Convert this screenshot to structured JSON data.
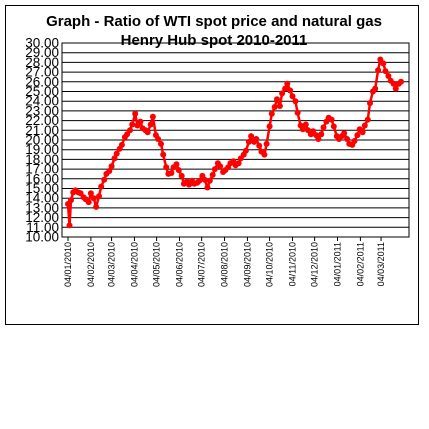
{
  "chart_data": {
    "type": "line",
    "title": "Graph - Ratio of WTI spot price and natural gas Henry Hub spot 2010-2011",
    "xlabel": "",
    "ylabel": "",
    "ylim": [
      10,
      30
    ],
    "yticks": [
      "10.00",
      "11.00",
      "12.00",
      "13.00",
      "14.00",
      "15.00",
      "16.00",
      "17.00",
      "18.00",
      "19.00",
      "20.00",
      "21.00",
      "22.00",
      "23.00",
      "24.00",
      "25.00",
      "26.00",
      "27.00",
      "28.00",
      "29.00",
      "30.00"
    ],
    "xlim": [
      "2010-01-04",
      "2011-03-31"
    ],
    "xticks": [
      {
        "date": "2010-01-04",
        "label": "04/01/2010"
      },
      {
        "date": "2010-02-04",
        "label": "04/02/2010"
      },
      {
        "date": "2010-03-04",
        "label": "04/03/2010"
      },
      {
        "date": "2010-04-04",
        "label": "04/04/2010"
      },
      {
        "date": "2010-05-04",
        "label": "04/05/2010"
      },
      {
        "date": "2010-06-04",
        "label": "04/06/2010"
      },
      {
        "date": "2010-07-04",
        "label": "04/07/2010"
      },
      {
        "date": "2010-08-04",
        "label": "04/08/2010"
      },
      {
        "date": "2010-09-04",
        "label": "04/09/2010"
      },
      {
        "date": "2010-10-04",
        "label": "04/10/2010"
      },
      {
        "date": "2010-11-04",
        "label": "04/11/2010"
      },
      {
        "date": "2010-12-04",
        "label": "04/12/2010"
      },
      {
        "date": "2011-01-04",
        "label": "04/01/2011"
      },
      {
        "date": "2011-02-04",
        "label": "04/02/2011"
      },
      {
        "date": "2011-03-04",
        "label": "04/03/2011"
      }
    ],
    "grid": "horizontal",
    "series": [
      {
        "color": "#ff0000",
        "points": [
          [
            "2010-01-04",
            13.4
          ],
          [
            "2010-01-06",
            11.2
          ],
          [
            "2010-01-08",
            13.8
          ],
          [
            "2010-01-11",
            14.6
          ],
          [
            "2010-01-14",
            14.8
          ],
          [
            "2010-01-18",
            14.6
          ],
          [
            "2010-01-21",
            14.5
          ],
          [
            "2010-01-25",
            14.1
          ],
          [
            "2010-01-28",
            13.9
          ],
          [
            "2010-02-01",
            13.6
          ],
          [
            "2010-02-04",
            14.5
          ],
          [
            "2010-02-08",
            14.0
          ],
          [
            "2010-02-11",
            13.1
          ],
          [
            "2010-02-15",
            14.2
          ],
          [
            "2010-02-18",
            15.2
          ],
          [
            "2010-02-22",
            15.9
          ],
          [
            "2010-02-25",
            16.5
          ],
          [
            "2010-03-01",
            16.8
          ],
          [
            "2010-03-04",
            17.3
          ],
          [
            "2010-03-08",
            18.1
          ],
          [
            "2010-03-11",
            18.6
          ],
          [
            "2010-03-15",
            19.1
          ],
          [
            "2010-03-18",
            19.5
          ],
          [
            "2010-03-22",
            20.3
          ],
          [
            "2010-03-25",
            20.6
          ],
          [
            "2010-03-29",
            21.0
          ],
          [
            "2010-04-01",
            21.6
          ],
          [
            "2010-04-05",
            22.7
          ],
          [
            "2010-04-08",
            21.5
          ],
          [
            "2010-04-12",
            21.9
          ],
          [
            "2010-04-15",
            21.2
          ],
          [
            "2010-04-19",
            21.0
          ],
          [
            "2010-04-22",
            20.8
          ],
          [
            "2010-04-26",
            21.6
          ],
          [
            "2010-04-29",
            22.4
          ],
          [
            "2010-05-03",
            20.5
          ],
          [
            "2010-05-06",
            20.1
          ],
          [
            "2010-05-10",
            19.6
          ],
          [
            "2010-05-13",
            18.5
          ],
          [
            "2010-05-17",
            17.2
          ],
          [
            "2010-05-20",
            16.5
          ],
          [
            "2010-05-24",
            16.6
          ],
          [
            "2010-05-27",
            17.2
          ],
          [
            "2010-05-31",
            17.5
          ],
          [
            "2010-06-03",
            16.9
          ],
          [
            "2010-06-07",
            16.3
          ],
          [
            "2010-06-10",
            15.5
          ],
          [
            "2010-06-14",
            15.7
          ],
          [
            "2010-06-17",
            15.4
          ],
          [
            "2010-06-21",
            15.8
          ],
          [
            "2010-06-24",
            15.5
          ],
          [
            "2010-06-28",
            15.6
          ],
          [
            "2010-07-01",
            15.8
          ],
          [
            "2010-07-05",
            16.3
          ],
          [
            "2010-07-08",
            15.9
          ],
          [
            "2010-07-12",
            15.1
          ],
          [
            "2010-07-15",
            15.8
          ],
          [
            "2010-07-19",
            16.4
          ],
          [
            "2010-07-22",
            17.0
          ],
          [
            "2010-07-26",
            17.6
          ],
          [
            "2010-07-29",
            17.3
          ],
          [
            "2010-08-02",
            16.7
          ],
          [
            "2010-08-05",
            16.9
          ],
          [
            "2010-08-09",
            17.2
          ],
          [
            "2010-08-12",
            17.6
          ],
          [
            "2010-08-16",
            17.8
          ],
          [
            "2010-08-19",
            17.4
          ],
          [
            "2010-08-23",
            17.6
          ],
          [
            "2010-08-26",
            18.1
          ],
          [
            "2010-08-30",
            18.5
          ],
          [
            "2010-09-02",
            18.9
          ],
          [
            "2010-09-06",
            19.8
          ],
          [
            "2010-09-09",
            20.4
          ],
          [
            "2010-09-13",
            19.8
          ],
          [
            "2010-09-16",
            20.1
          ],
          [
            "2010-09-20",
            19.4
          ],
          [
            "2010-09-23",
            18.8
          ],
          [
            "2010-09-27",
            18.5
          ],
          [
            "2010-09-30",
            19.6
          ],
          [
            "2010-10-04",
            21.4
          ],
          [
            "2010-10-07",
            22.7
          ],
          [
            "2010-10-11",
            23.4
          ],
          [
            "2010-10-14",
            24.2
          ],
          [
            "2010-10-18",
            23.5
          ],
          [
            "2010-10-21",
            24.8
          ],
          [
            "2010-10-25",
            25.3
          ],
          [
            "2010-10-28",
            25.8
          ],
          [
            "2010-11-01",
            25.1
          ],
          [
            "2010-11-04",
            24.5
          ],
          [
            "2010-11-08",
            24.0
          ],
          [
            "2010-11-11",
            22.8
          ],
          [
            "2010-11-15",
            21.5
          ],
          [
            "2010-11-18",
            21.1
          ],
          [
            "2010-11-22",
            21.6
          ],
          [
            "2010-11-25",
            21.0
          ],
          [
            "2010-11-29",
            20.6
          ],
          [
            "2010-12-02",
            20.9
          ],
          [
            "2010-12-06",
            20.5
          ],
          [
            "2010-12-09",
            20.1
          ],
          [
            "2010-12-13",
            20.6
          ],
          [
            "2010-12-16",
            21.3
          ],
          [
            "2010-12-20",
            21.9
          ],
          [
            "2010-12-23",
            22.3
          ],
          [
            "2010-12-27",
            22.1
          ],
          [
            "2010-12-30",
            21.4
          ],
          [
            "2011-01-03",
            20.4
          ],
          [
            "2011-01-06",
            20.1
          ],
          [
            "2011-01-10",
            20.4
          ],
          [
            "2011-01-13",
            20.7
          ],
          [
            "2011-01-17",
            20.1
          ],
          [
            "2011-01-20",
            19.6
          ],
          [
            "2011-01-24",
            19.5
          ],
          [
            "2011-01-27",
            19.9
          ],
          [
            "2011-01-31",
            20.5
          ],
          [
            "2011-02-03",
            21.1
          ],
          [
            "2011-02-07",
            20.8
          ],
          [
            "2011-02-10",
            21.5
          ],
          [
            "2011-02-14",
            22.1
          ],
          [
            "2011-02-17",
            23.8
          ],
          [
            "2011-02-21",
            25.0
          ],
          [
            "2011-02-24",
            25.3
          ],
          [
            "2011-02-28",
            27.2
          ],
          [
            "2011-03-03",
            28.3
          ],
          [
            "2011-03-07",
            27.9
          ],
          [
            "2011-03-10",
            27.1
          ],
          [
            "2011-03-14",
            26.6
          ],
          [
            "2011-03-17",
            26.1
          ],
          [
            "2011-03-21",
            25.8
          ],
          [
            "2011-03-24",
            25.3
          ],
          [
            "2011-03-28",
            25.8
          ],
          [
            "2011-03-31",
            26.0
          ]
        ]
      }
    ]
  }
}
